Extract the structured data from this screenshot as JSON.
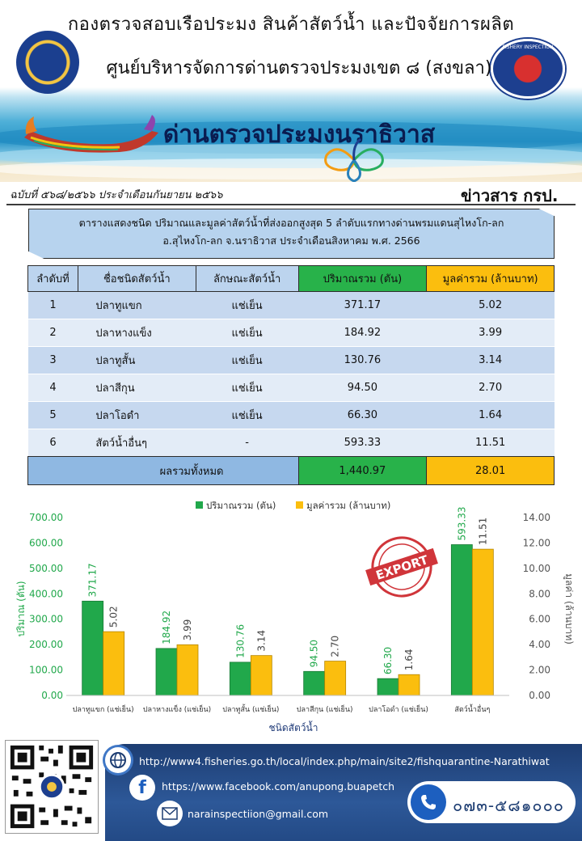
{
  "header": {
    "line1": "กองตรวจสอบเรือประมง สินค้าสัตว์น้ำ และปัจจัยการผลิต",
    "line2": "ศูนย์บริหารจัดการด่านตรวจประมงเขต ๘ (สงขลา)",
    "line3": "ด่านตรวจประมงนราธิวาส",
    "issue": "ฉบับที่ ๕๖๘/๒๕๖๖ ประจำเดือนกันยายน ๒๕๖๖",
    "news_name": "ข่าวสาร กรป.",
    "logo_right_text": "FISHERY INSPECTION",
    "logo_left_icon": "department-of-fisheries-seal-icon",
    "logo_right_icon": "fishery-inspection-badge-icon"
  },
  "title": {
    "line1": "ตารางแสดงชนิด ปริมาณและมูลค่าสัตว์น้ำที่ส่งออกสูงสุด 5 ลำดับแรกทางด่านพรมแดนสุไหงโก-ลก",
    "line2": "อ.สุไหงโก-ลก จ.นราธิวาส ประจำเดือนสิงหาคม  พ.ศ. 2566"
  },
  "table": {
    "headers": [
      "ลำดับที่",
      "ชื่อชนิดสัตว์น้ำ",
      "ลักษณะสัตว์น้ำ",
      "ปริมาณรวม (ตัน)",
      "มูลค่ารวม (ล้านบาท)"
    ],
    "rows": [
      {
        "rank": "1",
        "name": "ปลาทูแขก",
        "form": "แช่เย็น",
        "qty": "371.17",
        "value": "5.02"
      },
      {
        "rank": "2",
        "name": "ปลาหางแข็ง",
        "form": "แช่เย็น",
        "qty": "184.92",
        "value": "3.99"
      },
      {
        "rank": "3",
        "name": "ปลาทูสั้น",
        "form": "แช่เย็น",
        "qty": "130.76",
        "value": "3.14"
      },
      {
        "rank": "4",
        "name": "ปลาสีกุน",
        "form": "แช่เย็น",
        "qty": "94.50",
        "value": "2.70"
      },
      {
        "rank": "5",
        "name": "ปลาโอดำ",
        "form": "แช่เย็น",
        "qty": "66.30",
        "value": "1.64"
      },
      {
        "rank": "6",
        "name": "สัตว์น้ำอื่นๆ",
        "form": "-",
        "qty": "593.33",
        "value": "11.51"
      }
    ],
    "total_label": "ผลรวมทั้งหมด",
    "total_qty": "1,440.97",
    "total_value": "28.01"
  },
  "chart_data": {
    "type": "bar",
    "categories": [
      "ปลาทูแขก (แช่เย็น)",
      "ปลาหางแข็ง (แช่เย็น)",
      "ปลาทูสั้น (แช่เย็น)",
      "ปลาสีกุน (แช่เย็น)",
      "ปลาโอดำ (แช่เย็น)",
      "สัตว์น้ำอื่นๆ"
    ],
    "series": [
      {
        "name": "ปริมาณรวม (ตัน)",
        "axis": "left",
        "color": "#21a84b",
        "values": [
          371.17,
          184.92,
          130.76,
          94.5,
          66.3,
          593.33
        ]
      },
      {
        "name": "มูลค่ารวม (ล้านบาท)",
        "axis": "right",
        "color": "#fbbe0e",
        "values": [
          5.02,
          3.99,
          3.14,
          2.7,
          1.64,
          11.51
        ]
      }
    ],
    "xlabel": "ชนิดสัตว์น้ำ",
    "ylabel_left": "ปริมาณ (ตัน)",
    "ylabel_right": "มูลค่า (ล้านบาท)",
    "ylim_left": [
      0,
      700
    ],
    "ylim_right": [
      0,
      14
    ],
    "yticks_left": [
      "0.00",
      "100.00",
      "200.00",
      "300.00",
      "400.00",
      "500.00",
      "600.00",
      "700.00"
    ],
    "yticks_right": [
      "0.00",
      "2.00",
      "4.00",
      "6.00",
      "8.00",
      "10.00",
      "12.00",
      "14.00"
    ],
    "data_labels_left": [
      "371.17",
      "184.92",
      "130.76",
      "94.50",
      "66.30",
      "593.33"
    ],
    "data_labels_right": [
      "5.02",
      "3.99",
      "3.14",
      "2.70",
      "1.64",
      "11.51"
    ],
    "legend_placement": "top",
    "grid": false,
    "stamp_text": "EXPORT"
  },
  "footer": {
    "website": "http://www4.fisheries.go.th/local/index.php/main/site2/fishquarantine-Narathiwat",
    "facebook": "https://www.facebook.com/anupong.buapetch",
    "email": "narainspectiion@gmail.com",
    "phone": "๐๗๓-๕๘๑๐๐๐",
    "qr_icon": "qr-code-icon",
    "web_icon": "globe-icon",
    "fb_icon": "facebook-icon",
    "mail_icon": "mail-icon",
    "phone_icon": "phone-icon"
  }
}
